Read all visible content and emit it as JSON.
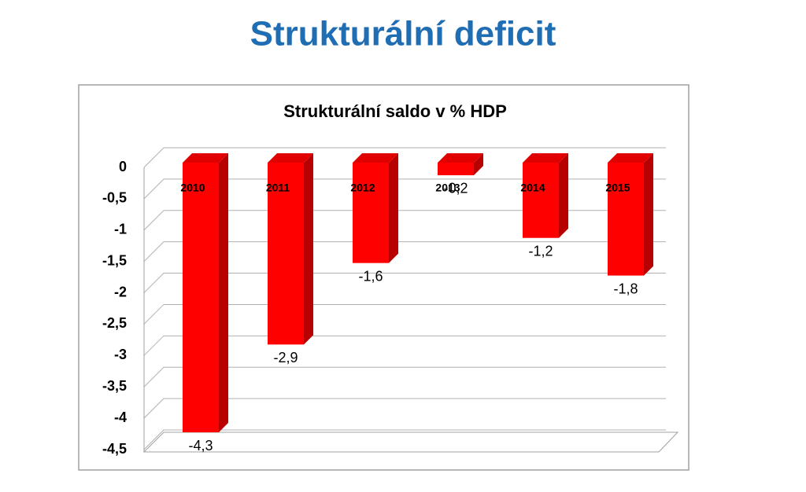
{
  "header": {
    "title": "Strukturální deficit"
  },
  "chart_data": {
    "type": "bar3d",
    "title": "Strukturální saldo v % HDP",
    "categories": [
      "2010",
      "2011",
      "2012",
      "2013",
      "2014",
      "2015"
    ],
    "values": [
      -4.3,
      -2.9,
      -1.6,
      -0.2,
      -1.2,
      -1.8
    ],
    "value_labels": [
      "-4,3",
      "-2,9",
      "-1,6",
      "-0,2",
      "-1,2",
      "-1,8"
    ],
    "color": "#ff0000",
    "ylim": [
      -4.5,
      0
    ],
    "yticks": [
      0,
      {
        "value": -0.5,
        "label": "-0,5"
      },
      -1,
      {
        "value": -1.5,
        "label": "-1,5"
      },
      -2,
      {
        "value": -2.5,
        "label": "-2,5"
      },
      -3,
      {
        "value": -3.5,
        "label": "-3,5"
      },
      -4,
      {
        "value": -4.5,
        "label": "-4,5"
      }
    ],
    "grid": true
  }
}
